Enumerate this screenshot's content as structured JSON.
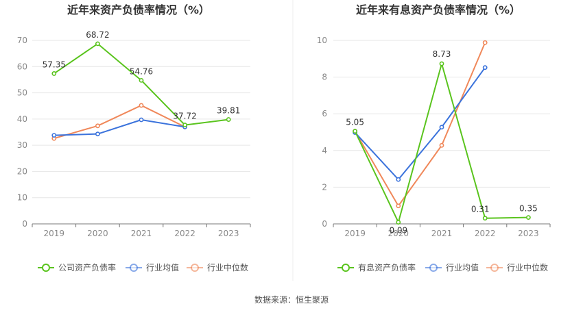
{
  "colors": {
    "company": "#5ac41e",
    "industry_avg": "#3b73dc",
    "industry_median": "#f0885a",
    "axis": "#888888",
    "grid": "#e6e6e6",
    "title": "#333333",
    "text": "#555555"
  },
  "source": "数据来源：恒生聚源",
  "chart_data": [
    {
      "type": "line",
      "title": "近年来资产负债率情况（%）",
      "categories": [
        "2019",
        "2020",
        "2021",
        "2022",
        "2023"
      ],
      "ylim": [
        0,
        70
      ],
      "yticks": [
        "0",
        "10",
        "20",
        "30",
        "40",
        "50",
        "60",
        "70"
      ],
      "grid": true,
      "legend_position": "bottom",
      "series": [
        {
          "name": "公司资产负债率",
          "values": [
            57.35,
            68.72,
            54.76,
            37.72,
            39.81
          ],
          "labels": [
            "57.35",
            "68.72",
            "54.76",
            "37.72",
            "39.81"
          ]
        },
        {
          "name": "行业均值",
          "values": [
            33.8,
            34.3,
            39.7,
            37.0,
            null
          ]
        },
        {
          "name": "行业中位数",
          "values": [
            32.6,
            37.4,
            45.2,
            37.0,
            null
          ]
        }
      ]
    },
    {
      "type": "line",
      "title": "近年来有息资产负债率情况（%）",
      "categories": [
        "2019",
        "2020",
        "2021",
        "2022",
        "2023"
      ],
      "ylim": [
        0,
        10
      ],
      "yticks": [
        "0",
        "2",
        "4",
        "6",
        "8",
        "10"
      ],
      "grid": true,
      "legend_position": "bottom",
      "series": [
        {
          "name": "有息资产负债率",
          "values": [
            5.05,
            0.09,
            8.73,
            0.31,
            0.35
          ],
          "labels": [
            "5.05",
            "0.09",
            "8.73",
            "0.31",
            "0.35"
          ]
        },
        {
          "name": "行业均值",
          "values": [
            4.98,
            2.42,
            5.27,
            8.52,
            null
          ]
        },
        {
          "name": "行业中位数",
          "values": [
            5.05,
            0.98,
            4.28,
            9.88,
            null
          ]
        }
      ]
    }
  ]
}
